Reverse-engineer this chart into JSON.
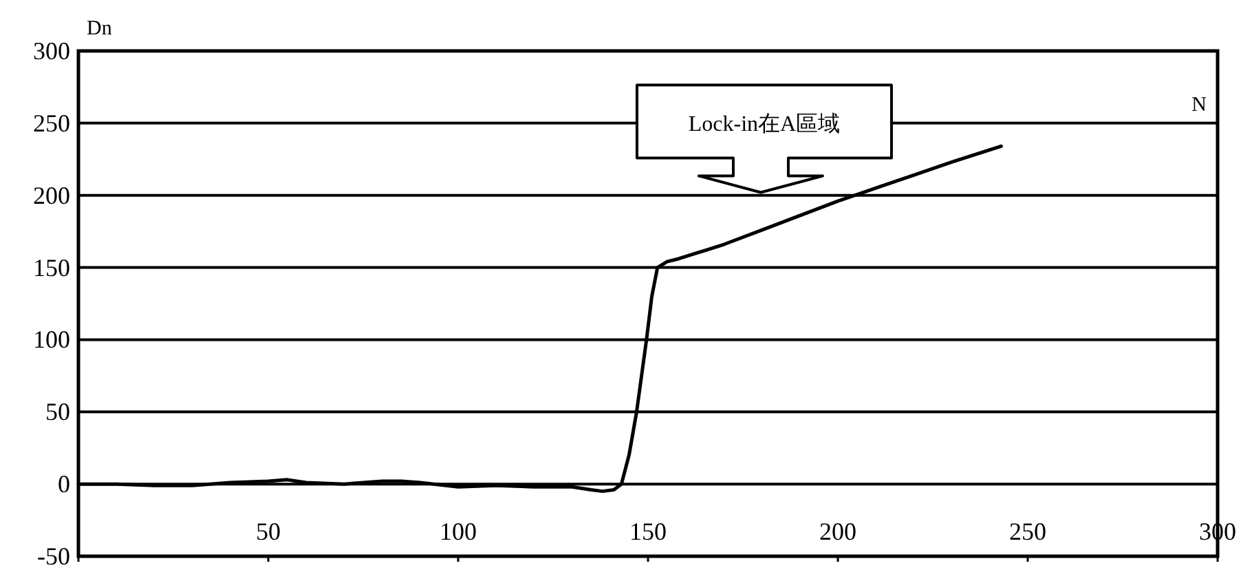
{
  "chart_data": {
    "type": "line",
    "xlabel": "N",
    "ylabel": "Dn",
    "annotations": [
      "Lock-in在A區域"
    ],
    "xlim": [
      0,
      300
    ],
    "ylim": [
      -50,
      300
    ],
    "xticks": [
      {
        "value": 0,
        "label": null
      },
      50,
      100,
      150,
      200,
      250,
      300
    ],
    "yticks": [
      -50,
      0,
      50,
      100,
      150,
      200,
      250,
      300
    ],
    "grid": "y",
    "line_style": "solid",
    "series": [
      {
        "color": "#000000",
        "x": [
          0,
          10,
          20,
          30,
          40,
          50,
          55,
          60,
          70,
          80,
          85,
          90,
          100,
          110,
          120,
          130,
          135,
          138,
          141,
          143,
          145,
          147,
          149.6,
          151,
          152.5,
          155,
          158,
          170,
          180,
          190,
          200,
          210,
          220,
          230,
          243
        ],
        "values": [
          0,
          0,
          -1,
          -1,
          1,
          2,
          3,
          1,
          0,
          2,
          2,
          1,
          -2,
          -1,
          -2,
          -2,
          -4,
          -5,
          -4,
          0,
          20,
          50,
          100,
          130,
          150,
          154,
          156,
          166,
          176,
          186,
          196,
          205,
          214,
          223,
          234
        ]
      }
    ]
  }
}
